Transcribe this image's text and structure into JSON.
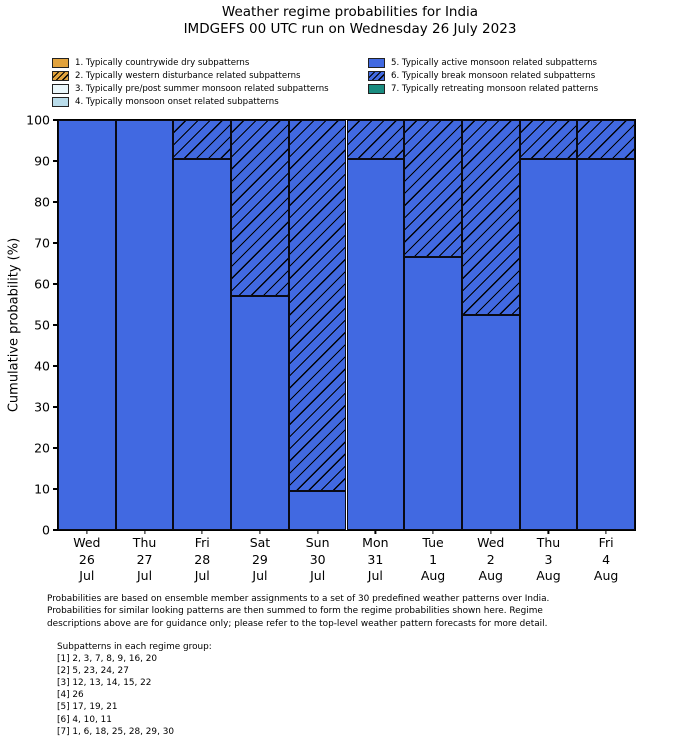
{
  "title": {
    "line1": "Weather regime probabilities for India",
    "line2": "IMDGEFS 00 UTC run on Wednesday 26 July 2023"
  },
  "colors": {
    "dry_orange": "#E2A33D",
    "pre_post_pale": "#EAF7FB",
    "onset_lightblue": "#B9DCEA",
    "active_blue": "#4169E1",
    "retreating_teal": "#1A8C80",
    "edge_black": "#0a0a14"
  },
  "legend": {
    "left": [
      {
        "label": "1. Typically countrywide dry subpatterns",
        "color": "#E2A33D",
        "hatched": false
      },
      {
        "label": "2. Typically western disturbance related subpatterns",
        "color": "#E2A33D",
        "hatched": true
      },
      {
        "label": "3. Typically pre/post summer monsoon related subpatterns",
        "color": "#EAF7FB",
        "hatched": false
      },
      {
        "label": "4. Typically monsoon onset related subpatterns",
        "color": "#B9DCEA",
        "hatched": false
      }
    ],
    "right": [
      {
        "label": "5. Typically active monsoon related subpatterns",
        "color": "#4169E1",
        "hatched": false
      },
      {
        "label": "6. Typically break monsoon related subpatterns",
        "color": "#4169E1",
        "hatched": true
      },
      {
        "label": "7. Typically retreating monsoon related patterns",
        "color": "#1A8C80",
        "hatched": false
      }
    ]
  },
  "chart_data": {
    "type": "bar",
    "stacked": true,
    "title": "Weather regime probabilities for India",
    "ylabel": "Cumulative probability (%)",
    "ylim": [
      0,
      100
    ],
    "yticks": [
      0,
      10,
      20,
      30,
      40,
      50,
      60,
      70,
      80,
      90,
      100
    ],
    "grid": false,
    "legend_position": "top",
    "categories": [
      [
        "Wed",
        "26",
        "Jul"
      ],
      [
        "Thu",
        "27",
        "Jul"
      ],
      [
        "Fri",
        "28",
        "Jul"
      ],
      [
        "Sat",
        "29",
        "Jul"
      ],
      [
        "Sun",
        "30",
        "Jul"
      ],
      [
        "Mon",
        "31",
        "Jul"
      ],
      [
        "Tue",
        "1",
        "Aug"
      ],
      [
        "Wed",
        "2",
        "Aug"
      ],
      [
        "Thu",
        "3",
        "Aug"
      ],
      [
        "Fri",
        "4",
        "Aug"
      ]
    ],
    "series": [
      {
        "name": "5. Typically active monsoon related subpatterns",
        "color": "#4169E1",
        "hatch": false,
        "values": [
          100,
          100,
          90.5,
          57.1,
          9.5,
          90.5,
          66.7,
          52.4,
          90.5,
          90.5
        ]
      },
      {
        "name": "6. Typically break monsoon related subpatterns",
        "color": "#4169E1",
        "hatch": true,
        "values": [
          0,
          0,
          9.5,
          42.9,
          90.5,
          9.5,
          33.3,
          47.6,
          9.5,
          9.5
        ]
      }
    ]
  },
  "footer": {
    "lines": [
      "Probabilities are based on ensemble member assignments to a set of 30 predefined weather patterns over India.",
      "Probabilities for similar looking patterns are then summed to form the regime probabilities shown here. Regime",
      "descriptions above are for guidance only; please refer to the top-level weather pattern forecasts for more detail."
    ]
  },
  "subpatterns": {
    "heading": "Subpatterns in each regime group:",
    "lines": [
      "[1] 2, 3, 7, 8, 9, 16, 20",
      "[2] 5, 23, 24, 27",
      "[3] 12, 13, 14, 15, 22",
      "[4] 26",
      "[5] 17, 19, 21",
      "[6] 4, 10, 11",
      "[7] 1, 6, 18, 25, 28, 29, 30"
    ]
  }
}
